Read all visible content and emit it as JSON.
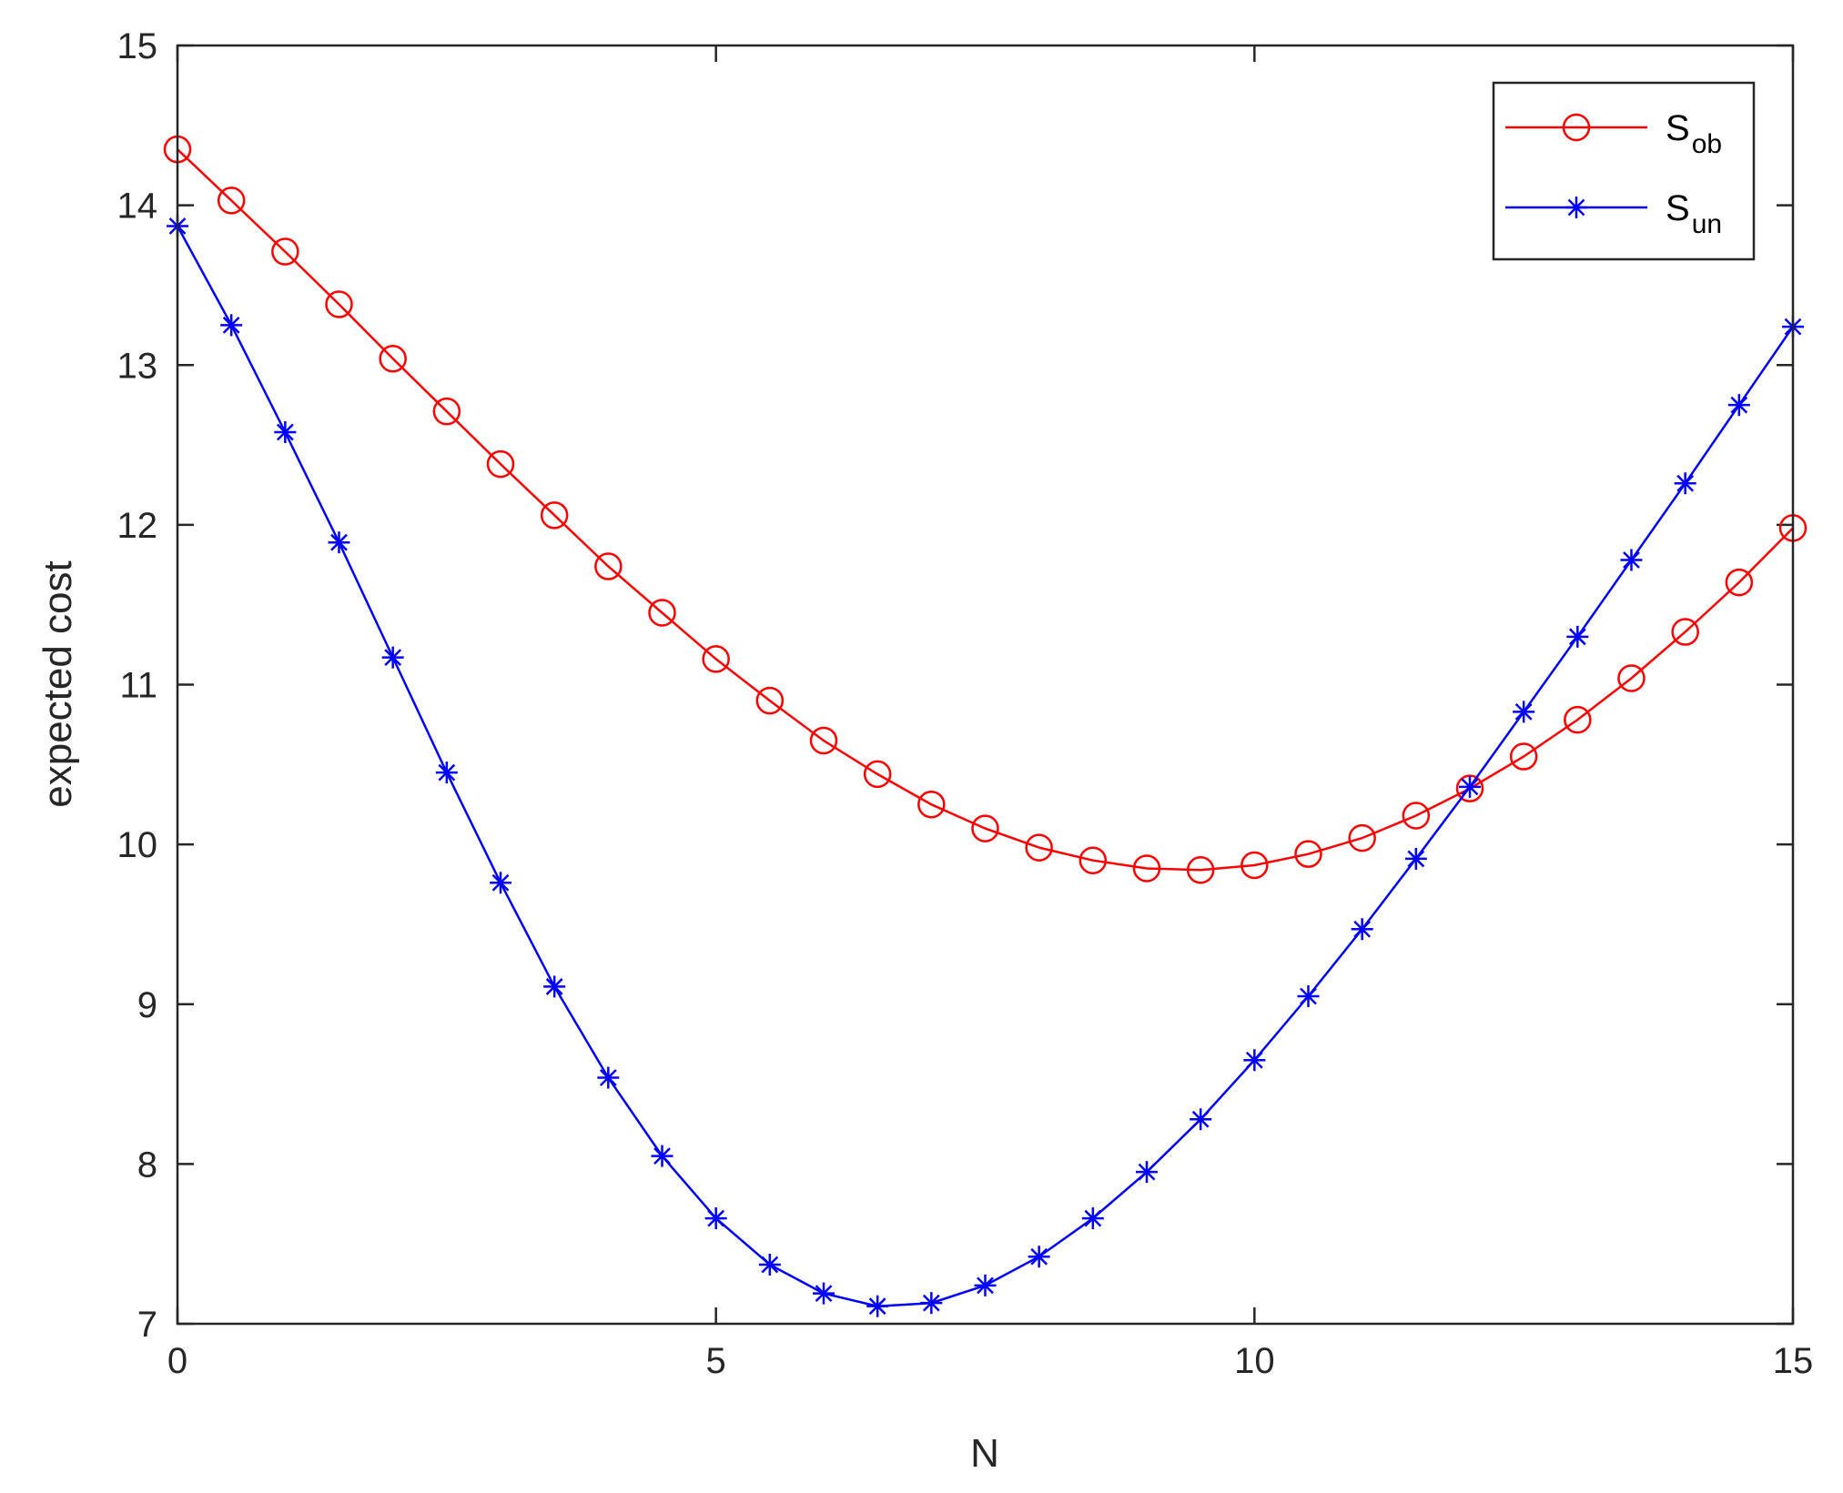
{
  "chart_data": {
    "type": "line",
    "xlabel": "N",
    "ylabel": "expected cost",
    "xlim": [
      0,
      15
    ],
    "ylim": [
      7,
      15
    ],
    "xticks": [
      0,
      5,
      10,
      15
    ],
    "yticks": [
      7,
      8,
      9,
      10,
      11,
      12,
      13,
      14,
      15
    ],
    "grid": false,
    "legend_position": "top-right",
    "x": [
      0,
      0.5,
      1,
      1.5,
      2,
      2.5,
      3,
      3.5,
      4,
      4.5,
      5,
      5.5,
      6,
      6.5,
      7,
      7.5,
      8,
      8.5,
      9,
      9.5,
      10,
      10.5,
      11,
      11.5,
      12,
      12.5,
      13,
      13.5,
      14,
      14.5,
      15
    ],
    "series": [
      {
        "name": "S_ob",
        "legend_main": "S",
        "legend_sub": "ob",
        "color": "#ff0000",
        "marker": "circle",
        "values": [
          14.35,
          14.03,
          13.71,
          13.38,
          13.04,
          12.71,
          12.38,
          12.06,
          11.74,
          11.45,
          11.16,
          10.9,
          10.65,
          10.44,
          10.25,
          10.1,
          9.98,
          9.9,
          9.85,
          9.84,
          9.87,
          9.94,
          10.04,
          10.18,
          10.35,
          10.55,
          10.78,
          11.04,
          11.33,
          11.64,
          11.98
        ]
      },
      {
        "name": "S_un",
        "legend_main": "S",
        "legend_sub": "un",
        "color": "#0000ff",
        "marker": "asterisk",
        "values": [
          13.87,
          13.25,
          12.58,
          11.89,
          11.17,
          10.45,
          9.76,
          9.11,
          8.54,
          8.05,
          7.66,
          7.37,
          7.19,
          7.11,
          7.13,
          7.24,
          7.42,
          7.66,
          7.95,
          8.28,
          8.65,
          9.05,
          9.47,
          9.91,
          10.36,
          10.83,
          11.3,
          11.78,
          12.26,
          12.75,
          13.24
        ]
      }
    ]
  }
}
